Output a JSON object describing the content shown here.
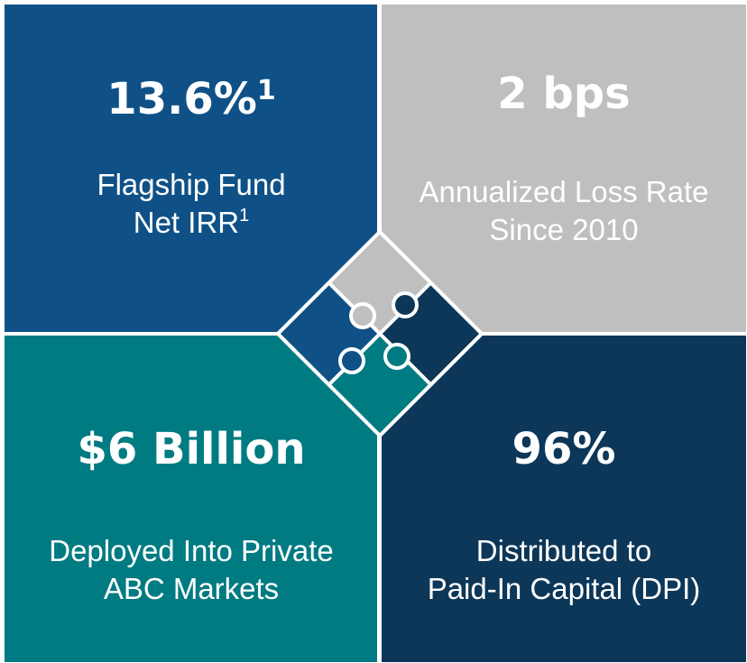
{
  "tiles": [
    {
      "headline": "13.6%",
      "headline_sup": "1",
      "description": [
        {
          "text": "Flagship Fund"
        },
        {
          "text": "Net IRR",
          "sup": "1"
        }
      ]
    },
    {
      "headline": "2 bps",
      "description": [
        {
          "text": "Annualized Loss Rate"
        },
        {
          "text": "Since 2010"
        }
      ]
    },
    {
      "headline": "$6 Billion",
      "description": [
        {
          "text": "Deployed Into Private"
        },
        {
          "text": "ABC Markets"
        }
      ]
    },
    {
      "headline": "96%",
      "description": [
        {
          "text": "Distributed to"
        },
        {
          "text": "Paid-In Capital (DPI)"
        }
      ]
    }
  ]
}
